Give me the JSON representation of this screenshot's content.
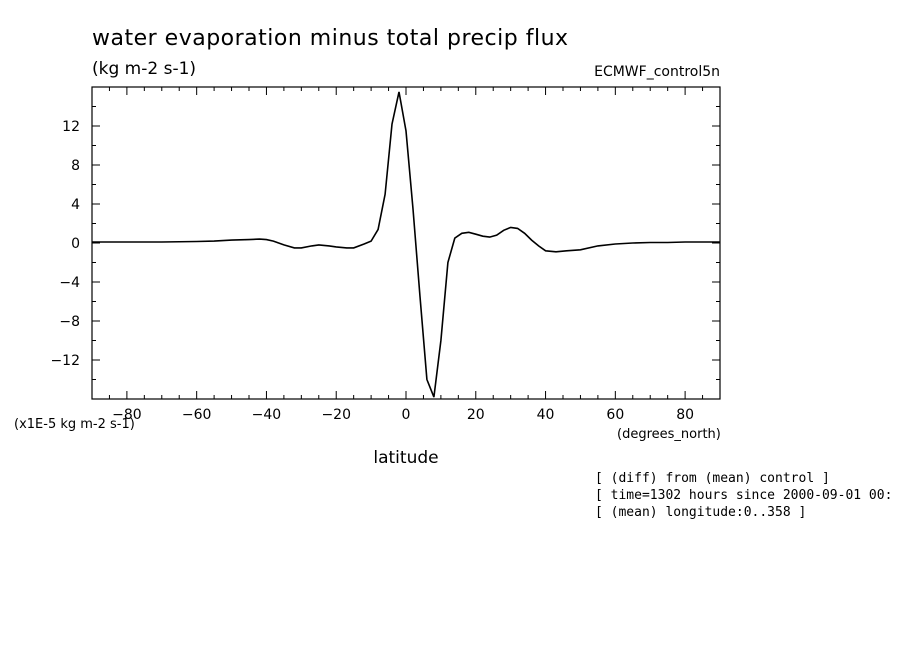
{
  "chart_data": {
    "type": "line",
    "title": "water evaporation minus total precip flux",
    "subtitle": "(kg m-2 s-1)",
    "dataset": "ECMWF_control5n",
    "xlabel": "latitude",
    "x_units": "(degrees_north)",
    "y_units": "(x1E-5 kg m-2 s-1)",
    "xlim": [
      -90,
      90
    ],
    "ylim": [
      -16,
      16
    ],
    "xticks": [
      -80,
      -60,
      -40,
      -20,
      0,
      20,
      40,
      60,
      80
    ],
    "yticks": [
      -12,
      -8,
      -4,
      0,
      4,
      8,
      12
    ],
    "grid": false,
    "series": [
      {
        "x": [
          -90,
          -80,
          -70,
          -60,
          -55,
          -50,
          -45,
          -42,
          -40,
          -38,
          -35,
          -32,
          -30,
          -27,
          -25,
          -22,
          -20,
          -17,
          -15,
          -12,
          -10,
          -8,
          -6,
          -4,
          -2,
          0,
          2,
          4,
          6,
          8,
          10,
          12,
          14,
          16,
          18,
          20,
          22,
          24,
          26,
          28,
          30,
          32,
          34,
          36,
          38,
          40,
          43,
          46,
          50,
          55,
          60,
          65,
          70,
          75,
          80,
          85,
          90
        ],
        "y": [
          0.1,
          0.1,
          0.1,
          0.15,
          0.2,
          0.3,
          0.35,
          0.4,
          0.35,
          0.2,
          -0.2,
          -0.5,
          -0.5,
          -0.3,
          -0.2,
          -0.3,
          -0.4,
          -0.5,
          -0.5,
          -0.1,
          0.2,
          1.4,
          5.0,
          12.2,
          15.5,
          11.5,
          3.5,
          -5.5,
          -14.0,
          -15.8,
          -10.0,
          -2.0,
          0.5,
          1.0,
          1.1,
          0.9,
          0.7,
          0.6,
          0.8,
          1.3,
          1.6,
          1.5,
          1.0,
          0.3,
          -0.3,
          -0.8,
          -0.9,
          -0.8,
          -0.7,
          -0.3,
          -0.1,
          0.0,
          0.05,
          0.05,
          0.1,
          0.1,
          0.1
        ]
      }
    ]
  },
  "notes": [
    "[ (diff) from (mean) control ]",
    "[ time=1302 hours since 2000-09-01 00:",
    "[ (mean) longitude:0..358 ]"
  ]
}
